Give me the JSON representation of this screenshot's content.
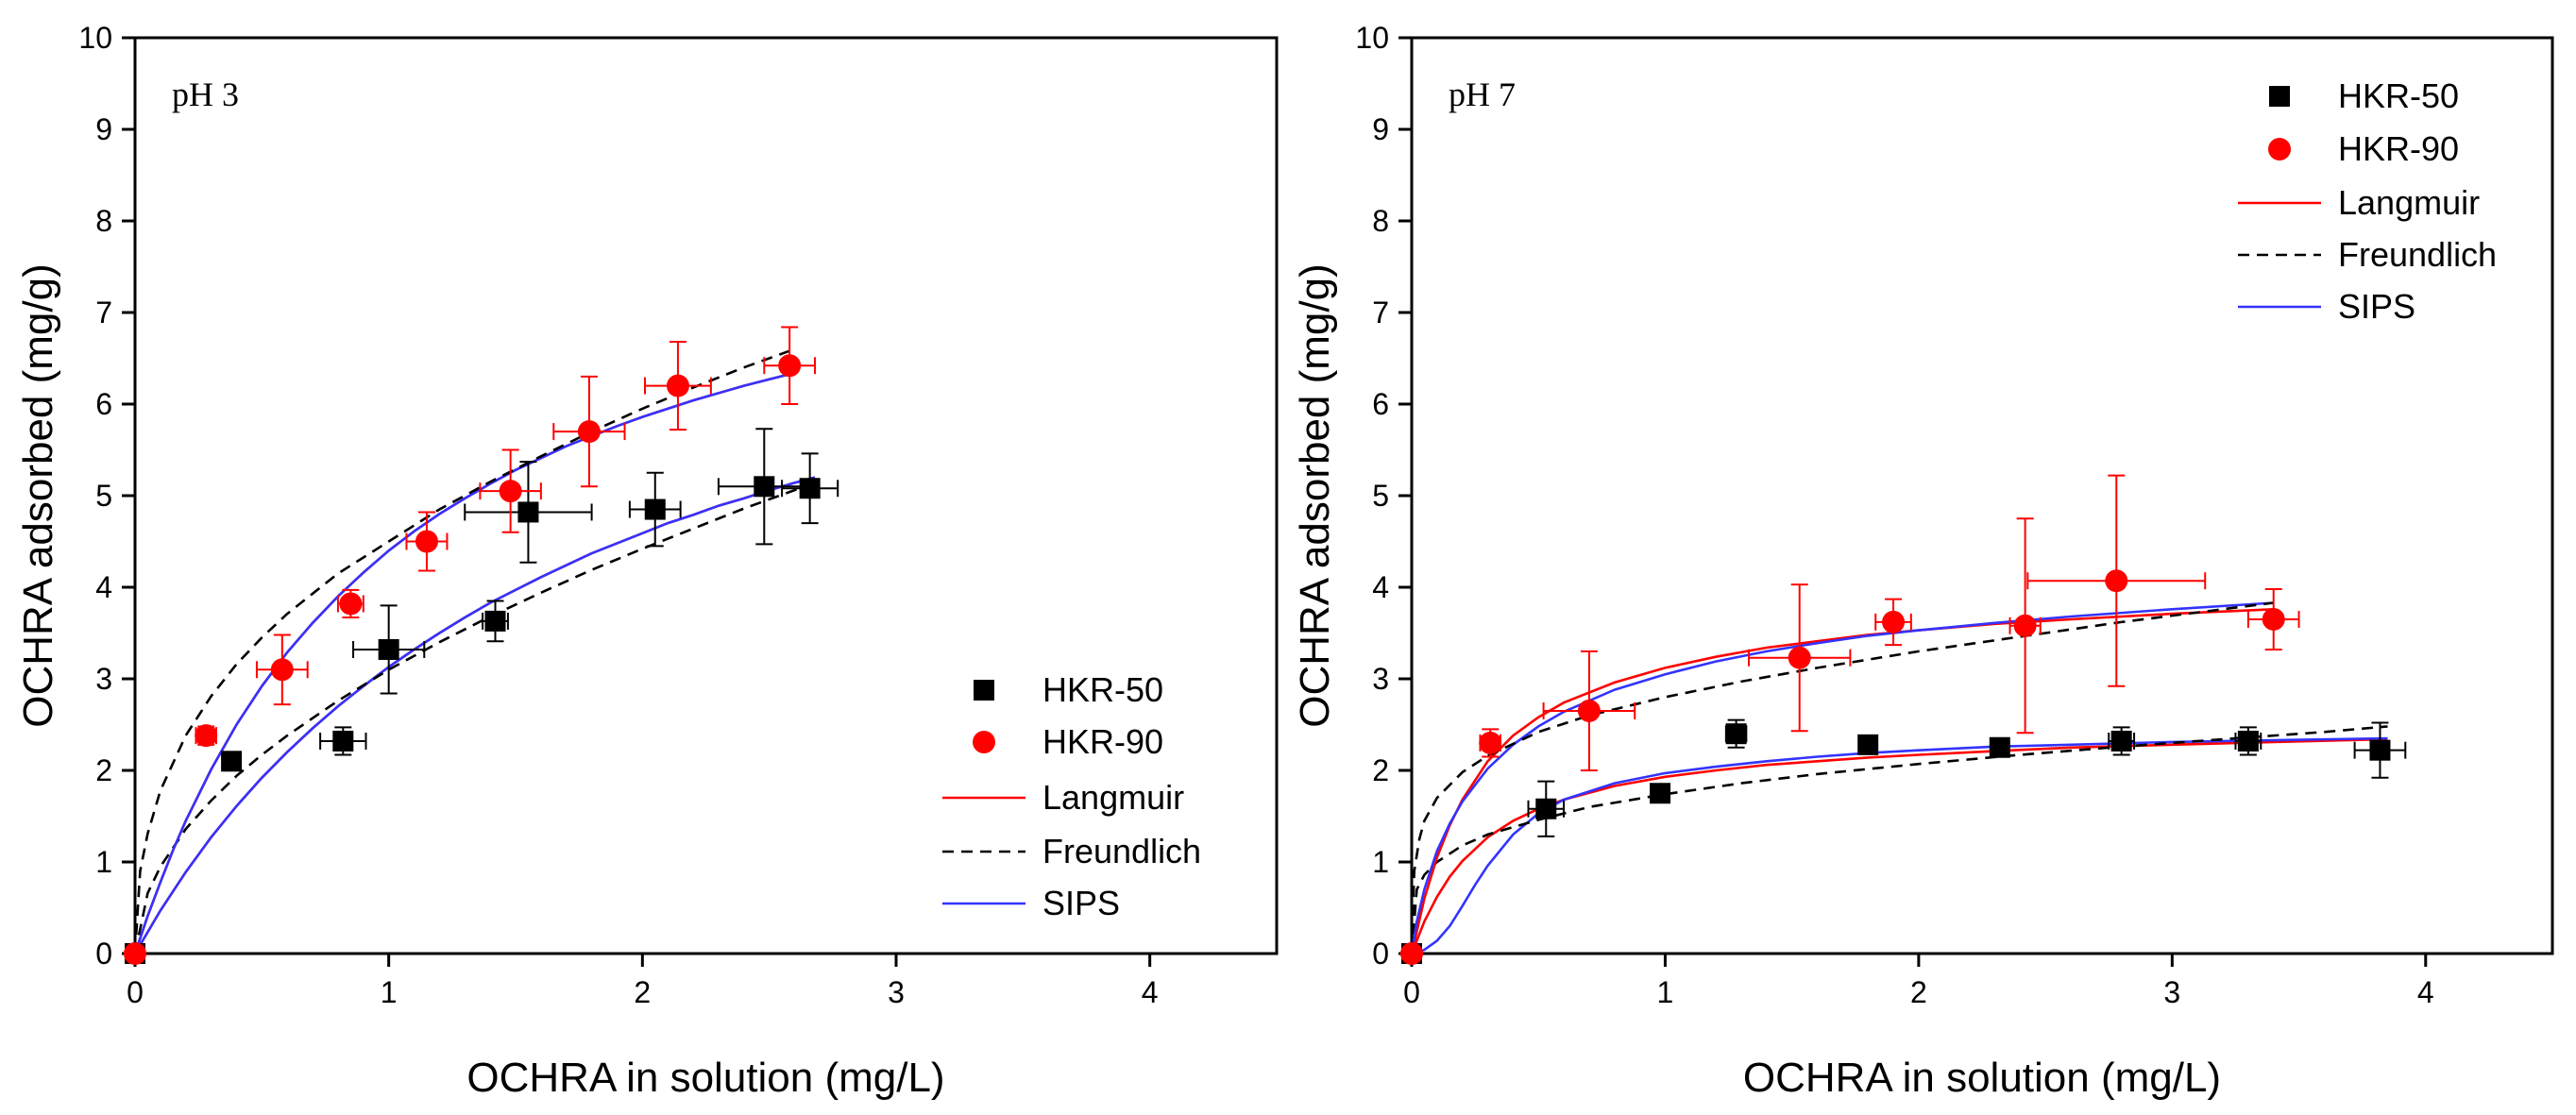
{
  "chart_data": [
    {
      "type": "scatter",
      "panel_label": "pH 3",
      "xlabel": "OCHRA in solution (mg/L)",
      "ylabel": "OCHRA adsorbed (mg/g)",
      "xlim": [
        0,
        4.5
      ],
      "ylim": [
        0,
        10
      ],
      "xticks": [
        "0",
        "1",
        "2",
        "3",
        "4"
      ],
      "yticks": [
        "0",
        "1",
        "2",
        "3",
        "4",
        "5",
        "6",
        "7",
        "8",
        "9",
        "10"
      ],
      "grid": false,
      "legend_position": "bottom-right",
      "legend": [
        "HKR-50",
        "HKR-90",
        "Langmuir",
        "Freundlich",
        "SIPS"
      ],
      "series": [
        {
          "name": "HKR-50",
          "kind": "points",
          "marker": "square",
          "color": "#000000",
          "points": [
            {
              "x": 0.0,
              "y": 0.0,
              "xerr": 0,
              "yerr": 0
            },
            {
              "x": 0.38,
              "y": 2.1,
              "xerr": 0,
              "yerr": 0.08
            },
            {
              "x": 0.82,
              "y": 2.32,
              "xerr": 0.09,
              "yerr": 0.15
            },
            {
              "x": 1.0,
              "y": 3.32,
              "xerr": 0.14,
              "yerr": 0.48
            },
            {
              "x": 1.42,
              "y": 3.63,
              "xerr": 0.05,
              "yerr": 0.22
            },
            {
              "x": 1.55,
              "y": 4.82,
              "xerr": 0.25,
              "yerr": 0.55
            },
            {
              "x": 2.05,
              "y": 4.85,
              "xerr": 0.1,
              "yerr": 0.4
            },
            {
              "x": 2.48,
              "y": 5.1,
              "xerr": 0.18,
              "yerr": 0.63
            },
            {
              "x": 2.66,
              "y": 5.08,
              "xerr": 0.11,
              "yerr": 0.38
            }
          ]
        },
        {
          "name": "HKR-90",
          "kind": "points",
          "marker": "circle",
          "color": "#ff0000",
          "points": [
            {
              "x": 0.0,
              "y": 0.0,
              "xerr": 0,
              "yerr": 0
            },
            {
              "x": 0.28,
              "y": 2.38,
              "xerr": 0.04,
              "yerr": 0.1
            },
            {
              "x": 0.58,
              "y": 3.1,
              "xerr": 0.1,
              "yerr": 0.38
            },
            {
              "x": 0.85,
              "y": 3.82,
              "xerr": 0.05,
              "yerr": 0.15
            },
            {
              "x": 1.15,
              "y": 4.5,
              "xerr": 0.08,
              "yerr": 0.32
            },
            {
              "x": 1.48,
              "y": 5.05,
              "xerr": 0.12,
              "yerr": 0.45
            },
            {
              "x": 1.79,
              "y": 5.7,
              "xerr": 0.14,
              "yerr": 0.6
            },
            {
              "x": 2.14,
              "y": 6.2,
              "xerr": 0.13,
              "yerr": 0.48
            },
            {
              "x": 2.58,
              "y": 6.42,
              "xerr": 0.1,
              "yerr": 0.42
            }
          ]
        },
        {
          "name": "Langmuir",
          "fit_for": "HKR-50",
          "kind": "line",
          "color": "#ff0000",
          "dash": "solid",
          "x": [
            0,
            0.1,
            0.2,
            0.3,
            0.4,
            0.5,
            0.6,
            0.7,
            0.8,
            0.9,
            1.0,
            1.1,
            1.2,
            1.3,
            1.4,
            1.5,
            1.6,
            1.7,
            1.8,
            1.9,
            2.0,
            2.1,
            2.2,
            2.3,
            2.4,
            2.5,
            2.6,
            2.68
          ],
          "y": [
            0,
            0.47,
            0.89,
            1.27,
            1.61,
            1.92,
            2.2,
            2.46,
            2.7,
            2.92,
            3.13,
            3.32,
            3.5,
            3.67,
            3.83,
            3.97,
            4.11,
            4.24,
            4.37,
            4.48,
            4.59,
            4.7,
            4.79,
            4.89,
            4.97,
            5.06,
            5.14,
            5.2
          ]
        },
        {
          "name": "SIPS",
          "fit_for": "HKR-50",
          "kind": "line",
          "color": "#3333ff",
          "dash": "solid",
          "x": [
            0,
            0.1,
            0.2,
            0.3,
            0.4,
            0.5,
            0.6,
            0.7,
            0.8,
            0.9,
            1.0,
            1.1,
            1.2,
            1.3,
            1.4,
            1.5,
            1.6,
            1.7,
            1.8,
            1.9,
            2.0,
            2.1,
            2.2,
            2.3,
            2.4,
            2.5,
            2.6,
            2.68
          ],
          "y": [
            0,
            0.47,
            0.89,
            1.27,
            1.61,
            1.92,
            2.2,
            2.46,
            2.7,
            2.92,
            3.13,
            3.32,
            3.5,
            3.67,
            3.83,
            3.97,
            4.11,
            4.24,
            4.37,
            4.48,
            4.59,
            4.7,
            4.79,
            4.89,
            4.97,
            5.06,
            5.14,
            5.2
          ]
        },
        {
          "name": "Freundlich",
          "fit_for": "HKR-50",
          "kind": "line",
          "color": "#000000",
          "dash": "dashed",
          "x": [
            0,
            0.05,
            0.1,
            0.2,
            0.3,
            0.4,
            0.5,
            0.6,
            0.8,
            1.0,
            1.2,
            1.4,
            1.6,
            1.8,
            2.0,
            2.2,
            2.4,
            2.6,
            2.7
          ],
          "y": [
            0,
            0.66,
            0.95,
            1.36,
            1.67,
            1.94,
            2.17,
            2.38,
            2.76,
            3.1,
            3.4,
            3.68,
            3.94,
            4.19,
            4.42,
            4.64,
            4.86,
            5.06,
            5.16
          ]
        },
        {
          "name": "Langmuir",
          "fit_for": "HKR-90",
          "kind": "line",
          "color": "#ff0000",
          "dash": "solid",
          "x": [
            0,
            0.05,
            0.1,
            0.15,
            0.2,
            0.3,
            0.4,
            0.5,
            0.6,
            0.7,
            0.8,
            0.9,
            1.0,
            1.1,
            1.2,
            1.3,
            1.4,
            1.5,
            1.6,
            1.7,
            1.8,
            1.9,
            2.0,
            2.1,
            2.2,
            2.3,
            2.4,
            2.5,
            2.6
          ],
          "y": [
            0,
            0.41,
            0.78,
            1.13,
            1.45,
            2.01,
            2.5,
            2.92,
            3.29,
            3.61,
            3.9,
            4.16,
            4.4,
            4.61,
            4.8,
            4.97,
            5.13,
            5.28,
            5.41,
            5.54,
            5.65,
            5.76,
            5.86,
            5.95,
            6.04,
            6.12,
            6.2,
            6.27,
            6.34
          ]
        },
        {
          "name": "SIPS",
          "fit_for": "HKR-90",
          "kind": "line",
          "color": "#3333ff",
          "dash": "solid",
          "x": [
            0,
            0.05,
            0.1,
            0.15,
            0.2,
            0.3,
            0.4,
            0.5,
            0.6,
            0.7,
            0.8,
            0.9,
            1.0,
            1.1,
            1.2,
            1.3,
            1.4,
            1.5,
            1.6,
            1.7,
            1.8,
            1.9,
            2.0,
            2.1,
            2.2,
            2.3,
            2.4,
            2.5,
            2.6
          ],
          "y": [
            0,
            0.41,
            0.78,
            1.13,
            1.45,
            2.01,
            2.5,
            2.92,
            3.29,
            3.61,
            3.9,
            4.16,
            4.4,
            4.61,
            4.8,
            4.97,
            5.13,
            5.28,
            5.41,
            5.54,
            5.65,
            5.76,
            5.86,
            5.95,
            6.04,
            6.12,
            6.2,
            6.27,
            6.34
          ]
        },
        {
          "name": "Freundlich",
          "fit_for": "HKR-90",
          "kind": "line",
          "color": "#000000",
          "dash": "dashed",
          "x": [
            0,
            0.02,
            0.05,
            0.1,
            0.2,
            0.3,
            0.4,
            0.5,
            0.6,
            0.8,
            1.0,
            1.2,
            1.4,
            1.6,
            1.8,
            2.0,
            2.2,
            2.4,
            2.6
          ],
          "y": [
            0,
            0.9,
            1.31,
            1.78,
            2.38,
            2.81,
            3.16,
            3.45,
            3.71,
            4.15,
            4.5,
            4.85,
            5.15,
            5.43,
            5.7,
            5.95,
            6.18,
            6.4,
            6.6
          ]
        }
      ]
    },
    {
      "type": "scatter",
      "panel_label": "pH 7",
      "xlabel": "OCHRA in solution (mg/L)",
      "ylabel": "OCHRA adsorbed (mg/g)",
      "xlim": [
        0,
        4.5
      ],
      "ylim": [
        0,
        10
      ],
      "xticks": [
        "0",
        "1",
        "2",
        "3",
        "4"
      ],
      "yticks": [
        "0",
        "1",
        "2",
        "3",
        "4",
        "5",
        "6",
        "7",
        "8",
        "9",
        "10"
      ],
      "grid": false,
      "legend_position": "top-right",
      "legend": [
        "HKR-50",
        "HKR-90",
        "Langmuir",
        "Freundlich",
        "SIPS"
      ],
      "series": [
        {
          "name": "HKR-50",
          "kind": "points",
          "marker": "square",
          "color": "#000000",
          "points": [
            {
              "x": 0.0,
              "y": 0.0,
              "xerr": 0,
              "yerr": 0
            },
            {
              "x": 0.53,
              "y": 1.58,
              "xerr": 0.07,
              "yerr": 0.3
            },
            {
              "x": 0.98,
              "y": 1.75,
              "xerr": 0,
              "yerr": 0.08
            },
            {
              "x": 1.28,
              "y": 2.4,
              "xerr": 0.04,
              "yerr": 0.15
            },
            {
              "x": 1.8,
              "y": 2.28,
              "xerr": 0,
              "yerr": 0.08
            },
            {
              "x": 2.32,
              "y": 2.25,
              "xerr": 0,
              "yerr": 0.08
            },
            {
              "x": 2.8,
              "y": 2.32,
              "xerr": 0.05,
              "yerr": 0.15
            },
            {
              "x": 3.3,
              "y": 2.32,
              "xerr": 0.05,
              "yerr": 0.15
            },
            {
              "x": 3.82,
              "y": 2.22,
              "xerr": 0.1,
              "yerr": 0.3
            }
          ]
        },
        {
          "name": "HKR-90",
          "kind": "points",
          "marker": "circle",
          "color": "#ff0000",
          "points": [
            {
              "x": 0.0,
              "y": 0.0,
              "xerr": 0,
              "yerr": 0
            },
            {
              "x": 0.31,
              "y": 2.3,
              "xerr": 0.04,
              "yerr": 0.15
            },
            {
              "x": 0.7,
              "y": 2.65,
              "xerr": 0.18,
              "yerr": 0.65
            },
            {
              "x": 1.53,
              "y": 3.23,
              "xerr": 0.2,
              "yerr": 0.8
            },
            {
              "x": 1.9,
              "y": 3.62,
              "xerr": 0.07,
              "yerr": 0.25
            },
            {
              "x": 2.42,
              "y": 3.58,
              "xerr": 0.06,
              "yerr": 1.17
            },
            {
              "x": 2.78,
              "y": 4.07,
              "xerr": 0.35,
              "yerr": 1.15
            },
            {
              "x": 3.4,
              "y": 3.65,
              "xerr": 0.1,
              "yerr": 0.33
            }
          ]
        },
        {
          "name": "Langmuir",
          "fit_for": "HKR-50",
          "kind": "line",
          "color": "#ff0000",
          "dash": "solid",
          "x": [
            0,
            0.05,
            0.1,
            0.15,
            0.2,
            0.3,
            0.4,
            0.5,
            0.6,
            0.8,
            1.0,
            1.2,
            1.4,
            1.6,
            1.8,
            2.0,
            2.3,
            2.6,
            3.0,
            3.4,
            3.85
          ],
          "y": [
            0,
            0.35,
            0.62,
            0.84,
            1.01,
            1.27,
            1.45,
            1.58,
            1.68,
            1.83,
            1.93,
            2.0,
            2.06,
            2.1,
            2.14,
            2.17,
            2.21,
            2.25,
            2.28,
            2.31,
            2.34
          ]
        },
        {
          "name": "SIPS",
          "fit_for": "HKR-50",
          "kind": "line",
          "color": "#3333ff",
          "dash": "solid",
          "x": [
            0,
            0.05,
            0.1,
            0.15,
            0.2,
            0.25,
            0.3,
            0.4,
            0.5,
            0.6,
            0.8,
            1.0,
            1.2,
            1.4,
            1.6,
            1.8,
            2.0,
            2.3,
            2.6,
            3.0,
            3.4,
            3.85
          ],
          "y": [
            0,
            0.04,
            0.14,
            0.3,
            0.52,
            0.75,
            0.96,
            1.3,
            1.53,
            1.68,
            1.86,
            1.97,
            2.04,
            2.1,
            2.15,
            2.19,
            2.22,
            2.26,
            2.28,
            2.31,
            2.33,
            2.35
          ]
        },
        {
          "name": "Freundlich",
          "fit_for": "HKR-50",
          "kind": "line",
          "color": "#000000",
          "dash": "dashed",
          "x": [
            0,
            0.02,
            0.05,
            0.1,
            0.2,
            0.3,
            0.5,
            0.7,
            1.0,
            1.3,
            1.6,
            2.0,
            2.4,
            2.8,
            3.2,
            3.6,
            3.85
          ],
          "y": [
            0,
            0.7,
            0.86,
            1.0,
            1.18,
            1.3,
            1.46,
            1.6,
            1.74,
            1.86,
            1.96,
            2.07,
            2.17,
            2.26,
            2.34,
            2.42,
            2.48
          ]
        },
        {
          "name": "Langmuir",
          "fit_for": "HKR-90",
          "kind": "line",
          "color": "#ff0000",
          "dash": "solid",
          "x": [
            0,
            0.05,
            0.1,
            0.15,
            0.2,
            0.3,
            0.4,
            0.5,
            0.6,
            0.8,
            1.0,
            1.2,
            1.4,
            1.6,
            1.8,
            2.0,
            2.3,
            2.6,
            3.0,
            3.4
          ],
          "y": [
            0,
            0.6,
            1.05,
            1.4,
            1.68,
            2.1,
            2.38,
            2.58,
            2.74,
            2.96,
            3.12,
            3.24,
            3.34,
            3.41,
            3.48,
            3.53,
            3.6,
            3.65,
            3.71,
            3.76
          ]
        },
        {
          "name": "SIPS",
          "fit_for": "HKR-90",
          "kind": "line",
          "color": "#3333ff",
          "dash": "solid",
          "x": [
            0,
            0.02,
            0.05,
            0.1,
            0.15,
            0.2,
            0.3,
            0.4,
            0.5,
            0.6,
            0.8,
            1.0,
            1.2,
            1.4,
            1.6,
            1.8,
            2.0,
            2.3,
            2.6,
            3.0,
            3.4
          ],
          "y": [
            0,
            0.35,
            0.7,
            1.12,
            1.42,
            1.66,
            2.02,
            2.28,
            2.48,
            2.64,
            2.88,
            3.05,
            3.19,
            3.3,
            3.39,
            3.47,
            3.53,
            3.61,
            3.68,
            3.76,
            3.83
          ]
        },
        {
          "name": "Freundlich",
          "fit_for": "HKR-90",
          "kind": "line",
          "color": "#000000",
          "dash": "dashed",
          "x": [
            0,
            0.01,
            0.03,
            0.05,
            0.1,
            0.2,
            0.3,
            0.5,
            0.7,
            1.0,
            1.3,
            1.6,
            2.0,
            2.4,
            2.8,
            3.2,
            3.4
          ],
          "y": [
            0,
            0.9,
            1.25,
            1.45,
            1.7,
            1.98,
            2.16,
            2.42,
            2.6,
            2.8,
            2.97,
            3.12,
            3.3,
            3.46,
            3.62,
            3.76,
            3.83
          ]
        }
      ]
    }
  ]
}
